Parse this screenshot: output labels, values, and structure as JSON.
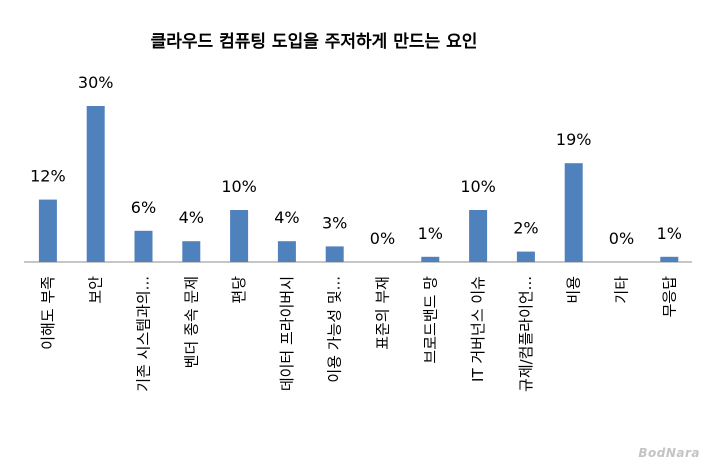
{
  "chart_data": {
    "type": "bar",
    "title": "클라우드 컴퓨팅 도입을 주저하게 만드는 요인",
    "categories": [
      "이해도 부족",
      "보안",
      "기존 시스템과의...",
      "벤더 종속 문제",
      "편당",
      "데이터 프라이버시",
      "이용 가능성 및...",
      "표준의 부재",
      "브로드밴드 망",
      "IT 거버넌스 이슈",
      "규제/컴플라이언...",
      "비용",
      "기타",
      "무응답"
    ],
    "values": [
      12,
      30,
      6,
      4,
      10,
      4,
      3,
      0,
      1,
      10,
      2,
      19,
      0,
      1
    ],
    "value_labels": [
      "12%",
      "30%",
      "6%",
      "4%",
      "10%",
      "4%",
      "3%",
      "0%",
      "1%",
      "10%",
      "2%",
      "19%",
      "0%",
      "1%"
    ],
    "ylim": [
      0,
      30
    ],
    "bar_color": "#4f81bd",
    "grid": false,
    "legend": "none"
  },
  "watermark": "BodNara"
}
